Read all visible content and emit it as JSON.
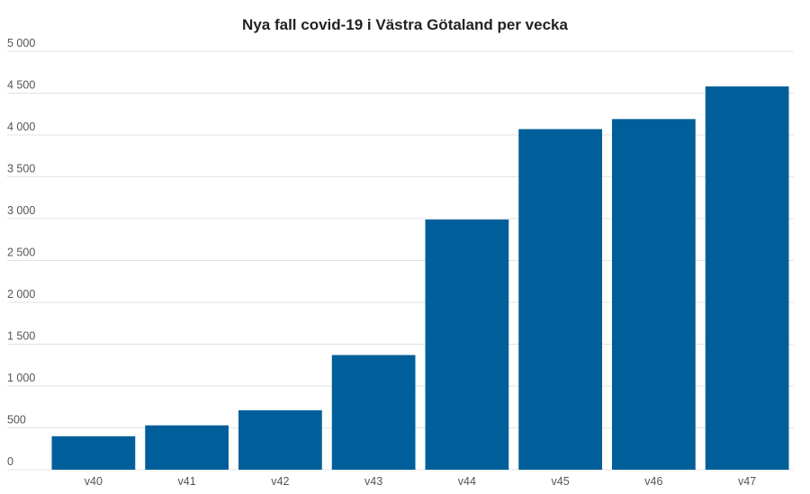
{
  "chart_data": {
    "type": "bar",
    "title": "Nya fall covid-19 i Västra Götaland per vecka",
    "xlabel": "",
    "ylabel": "",
    "categories": [
      "v40",
      "v41",
      "v42",
      "v43",
      "v44",
      "v45",
      "v46",
      "v47"
    ],
    "values": [
      400,
      530,
      710,
      1370,
      2990,
      4070,
      4190,
      4580
    ],
    "ylim": [
      0,
      5000
    ],
    "yticks": [
      0,
      500,
      1000,
      1500,
      2000,
      2500,
      3000,
      3500,
      4000,
      4500,
      5000
    ],
    "ytick_labels": [
      "0",
      "500",
      "1 000",
      "1 500",
      "2 000",
      "2 500",
      "3 000",
      "3 500",
      "4 000",
      "4 500",
      "5 000"
    ],
    "grid": true,
    "legend": "none",
    "bar_color": "#005f9a"
  }
}
